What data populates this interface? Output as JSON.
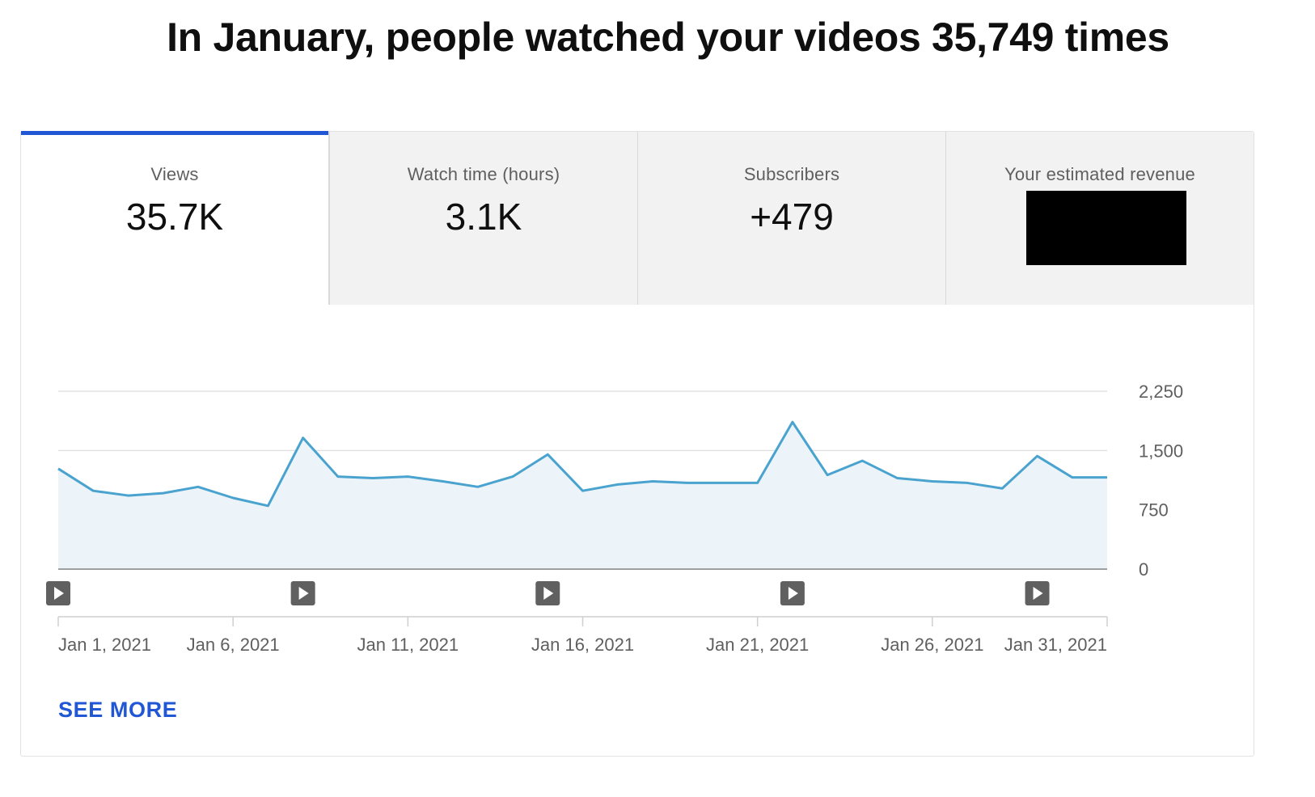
{
  "headline": "In January, people watched your videos 35,749 times",
  "tabs": [
    {
      "label": "Views",
      "value": "35.7K",
      "active": true
    },
    {
      "label": "Watch time (hours)",
      "value": "3.1K",
      "active": false
    },
    {
      "label": "Subscribers",
      "value": "+479",
      "active": false
    },
    {
      "label": "Your estimated revenue",
      "value": "",
      "redacted": true,
      "active": false
    }
  ],
  "see_more": "SEE MORE",
  "colors": {
    "accent": "#2157d4",
    "line": "#4aa3cf",
    "fill": "#ecf4fa"
  },
  "chart_data": {
    "type": "area",
    "x": [
      "Jan 1, 2021",
      "Jan 2, 2021",
      "Jan 3, 2021",
      "Jan 4, 2021",
      "Jan 5, 2021",
      "Jan 6, 2021",
      "Jan 7, 2021",
      "Jan 8, 2021",
      "Jan 9, 2021",
      "Jan 10, 2021",
      "Jan 11, 2021",
      "Jan 12, 2021",
      "Jan 13, 2021",
      "Jan 14, 2021",
      "Jan 15, 2021",
      "Jan 16, 2021",
      "Jan 17, 2021",
      "Jan 18, 2021",
      "Jan 19, 2021",
      "Jan 20, 2021",
      "Jan 21, 2021",
      "Jan 22, 2021",
      "Jan 23, 2021",
      "Jan 24, 2021",
      "Jan 25, 2021",
      "Jan 26, 2021",
      "Jan 27, 2021",
      "Jan 28, 2021",
      "Jan 29, 2021",
      "Jan 30, 2021",
      "Jan 31, 2021"
    ],
    "series": [
      {
        "values": [
          1270,
          990,
          930,
          960,
          1040,
          900,
          800,
          1660,
          1170,
          1150,
          1170,
          1110,
          1040,
          1170,
          1450,
          990,
          1070,
          1110,
          1090,
          1090,
          1090,
          1860,
          1190,
          1370,
          1150,
          1110,
          1090,
          1020,
          1430,
          1160,
          1160
        ]
      }
    ],
    "x_tick_labels": [
      "Jan 1, 2021",
      "Jan 6, 2021",
      "Jan 11, 2021",
      "Jan 16, 2021",
      "Jan 21, 2021",
      "Jan 26, 2021",
      "Jan 31, 2021"
    ],
    "y_ticks": [
      "2,250",
      "1,500",
      "750",
      "0"
    ],
    "ylim": [
      0,
      2250
    ],
    "grid": true,
    "video_markers_at": [
      "Jan 1, 2021",
      "Jan 8, 2021",
      "Jan 15, 2021",
      "Jan 22, 2021",
      "Jan 29, 2021"
    ]
  }
}
